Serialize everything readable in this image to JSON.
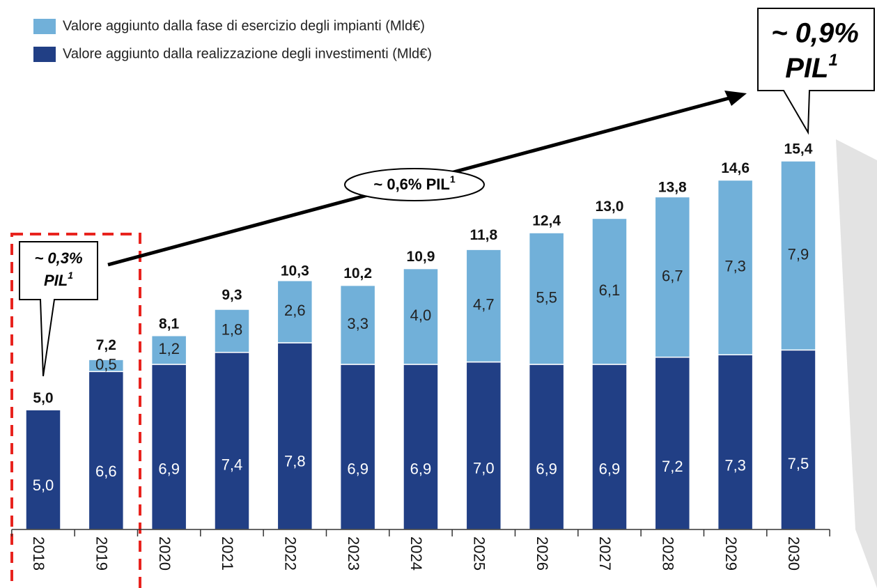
{
  "chart_data": {
    "type": "stacked_bar",
    "categories": [
      "2018",
      "2019",
      "2020",
      "2021",
      "2022",
      "2023",
      "2024",
      "2025",
      "2026",
      "2027",
      "2028",
      "2029",
      "2030"
    ],
    "series": [
      {
        "name": "Valore aggiunto dalla realizzazione degli investimenti (Mld€)",
        "color": "#213f85",
        "values": [
          5.0,
          6.6,
          6.9,
          7.4,
          7.8,
          6.9,
          6.9,
          7.0,
          6.9,
          6.9,
          7.2,
          7.3,
          7.5
        ],
        "value_labels": [
          "5,0",
          "6,6",
          "6,9",
          "7,4",
          "7,8",
          "6,9",
          "6,9",
          "7,0",
          "6,9",
          "6,9",
          "7,2",
          "7,3",
          "7,5"
        ]
      },
      {
        "name": "Valore aggiunto dalla fase di esercizio degli impianti (Mld€)",
        "color": "#71b0d9",
        "values": [
          null,
          0.5,
          1.2,
          1.8,
          2.6,
          3.3,
          4.0,
          4.7,
          5.5,
          6.1,
          6.7,
          7.3,
          7.9
        ],
        "value_labels": [
          null,
          "0,5",
          "1,2",
          "1,8",
          "2,6",
          "3,3",
          "4,0",
          "4,7",
          "5,5",
          "6,1",
          "6,7",
          "7,3",
          "7,9"
        ]
      }
    ],
    "totals": {
      "values": [
        5.0,
        7.2,
        8.1,
        9.3,
        10.3,
        10.2,
        10.9,
        11.8,
        12.4,
        13.0,
        13.8,
        14.6,
        15.4
      ],
      "value_labels": [
        "5,0",
        "7,2",
        "8,1",
        "9,3",
        "10,3",
        "10,2",
        "10,9",
        "11,8",
        "12,4",
        "13,0",
        "13,8",
        "14,6",
        "15,4"
      ]
    },
    "annotations": [
      {
        "text": "~ 0,3%",
        "text2": "PIL",
        "sup": "1"
      },
      {
        "text": "~ 0,6% PIL",
        "sup": "1"
      },
      {
        "text": "~ 0,9%",
        "text2": "PIL",
        "sup": "1"
      }
    ]
  }
}
